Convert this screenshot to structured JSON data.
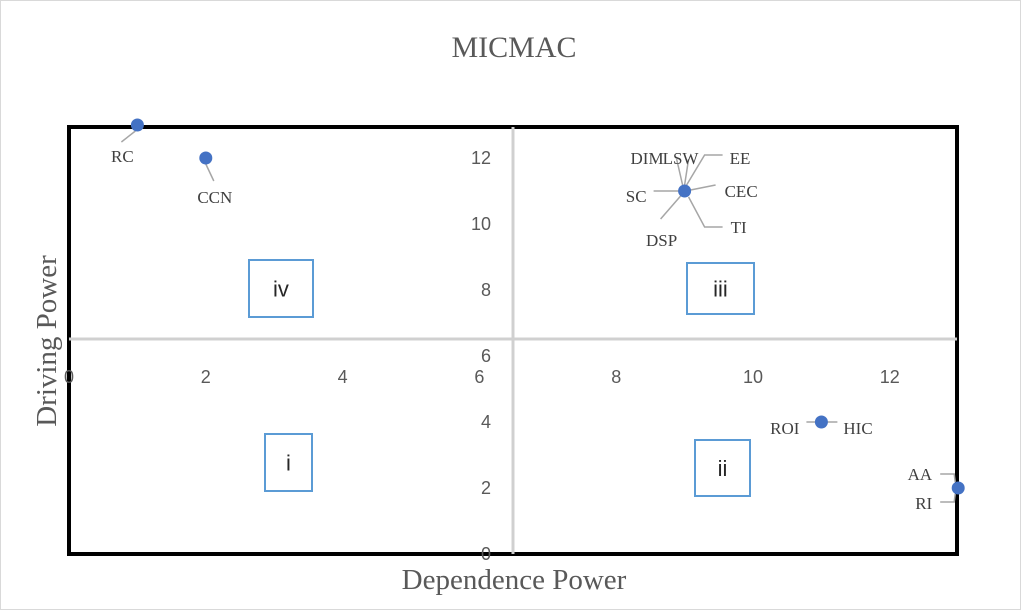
{
  "chart_data": {
    "type": "scatter",
    "title": "MICMAC",
    "xlabel": "Dependence Power",
    "ylabel": "Driving Power",
    "xlim": [
      0,
      13
    ],
    "ylim": [
      0,
      13
    ],
    "x_ticks": [
      0,
      2,
      4,
      6,
      8,
      10,
      12
    ],
    "y_ticks": [
      0,
      2,
      4,
      6,
      8,
      10,
      12
    ],
    "grid": false,
    "legend": "none",
    "point_color": "#4472c4",
    "points": [
      {
        "label": "RC",
        "x": 1,
        "y": 13
      },
      {
        "label": "CCN",
        "x": 2,
        "y": 12
      },
      {
        "label": "DIM",
        "x": 9,
        "y": 11
      },
      {
        "label": "LSW",
        "x": 9,
        "y": 11
      },
      {
        "label": "EE",
        "x": 9,
        "y": 11
      },
      {
        "label": "SC",
        "x": 9,
        "y": 11
      },
      {
        "label": "CEC",
        "x": 9,
        "y": 11
      },
      {
        "label": "DSP",
        "x": 9,
        "y": 11
      },
      {
        "label": "TI",
        "x": 9,
        "y": 11
      },
      {
        "label": "ROI",
        "x": 11,
        "y": 4
      },
      {
        "label": "HIC",
        "x": 11,
        "y": 4
      },
      {
        "label": "AA",
        "x": 13,
        "y": 2
      },
      {
        "label": "RI",
        "x": 13,
        "y": 2
      }
    ],
    "quadrants": [
      {
        "id": "iv",
        "label": "iv"
      },
      {
        "id": "iii",
        "label": "iii"
      },
      {
        "id": "i",
        "label": "i"
      },
      {
        "id": "ii",
        "label": "ii"
      }
    ]
  }
}
